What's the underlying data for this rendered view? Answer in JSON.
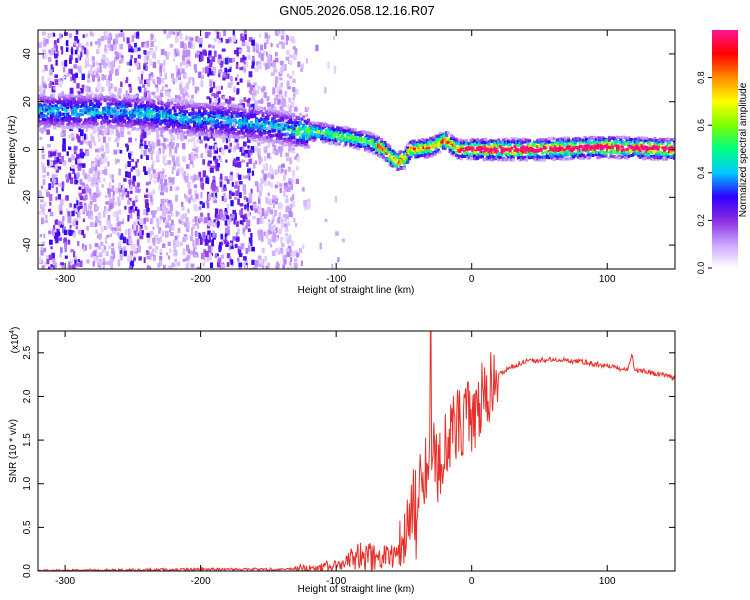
{
  "title": "GN05.2026.058.12.16.R07",
  "chart_data": [
    {
      "type": "heatmap",
      "xlabel": "Height of straight line (km)",
      "ylabel": "Frequency (Hz)",
      "xlim": [
        -320,
        150
      ],
      "ylim": [
        -50,
        50
      ],
      "xticks": [
        -300,
        -200,
        -100,
        0,
        100
      ],
      "yticks": [
        -40,
        -20,
        0,
        20,
        40
      ],
      "ridge": {
        "x": [
          -300,
          -270,
          -240,
          -210,
          -180,
          -150,
          -130,
          -110,
          -90,
          -75,
          -65,
          -60,
          -55,
          -50,
          -45,
          -40,
          -30,
          -20,
          -15,
          -10,
          0,
          50,
          100,
          150
        ],
        "y": [
          16,
          16,
          15,
          13,
          12,
          10,
          8,
          7,
          5,
          3,
          0,
          -3,
          -5,
          -4,
          0,
          0,
          1,
          4,
          2,
          0,
          0,
          0,
          1,
          0
        ]
      },
      "colorbar": {
        "label": "Normalized spectral amplitude",
        "range": [
          0.0,
          1.0
        ],
        "ticks": [
          "0.0",
          "0.2",
          "0.4",
          "0.6",
          "0.8"
        ],
        "colors": [
          "#ffffff",
          "#c9a3ff",
          "#8a2be2",
          "#2a00ff",
          "#00c8ff",
          "#00ff80",
          "#7cff00",
          "#ffff00",
          "#ff8c00",
          "#ff0000",
          "#ff1493"
        ]
      },
      "grid": false,
      "legend": "none"
    },
    {
      "type": "line",
      "xlabel": "Height of straight line (km)",
      "ylabel": "SNR (10 * v/v)",
      "exponent_label": "(x10",
      "exponent_power": "4",
      "exponent_close": ")",
      "xlim": [
        -320,
        150
      ],
      "ylim": [
        0.0,
        2.75
      ],
      "xticks": [
        -300,
        -200,
        -100,
        0,
        100
      ],
      "yticks": [
        "0.0",
        "0.5",
        "1.0",
        "1.5",
        "2.0",
        "2.5"
      ],
      "line_color": "#e8302a",
      "series": [
        {
          "x": [
            -320,
            -250,
            -200,
            -150,
            -120,
            -100,
            -90,
            -80,
            -70,
            -60,
            -50,
            -40,
            -35,
            -30,
            -25,
            -20,
            -10,
            0,
            10,
            20,
            30,
            40,
            50,
            60,
            80,
            100,
            115,
            118,
            120,
            130,
            140,
            150
          ],
          "y": [
            0.0,
            0.01,
            0.02,
            0.02,
            0.03,
            0.06,
            0.12,
            0.18,
            0.15,
            0.2,
            0.35,
            0.9,
            1.05,
            1.3,
            1.2,
            1.4,
            1.7,
            1.75,
            2.0,
            2.25,
            2.35,
            2.4,
            2.42,
            2.42,
            2.4,
            2.35,
            2.3,
            2.5,
            2.3,
            2.28,
            2.25,
            2.2
          ]
        }
      ],
      "grid": false,
      "legend": "none"
    }
  ]
}
